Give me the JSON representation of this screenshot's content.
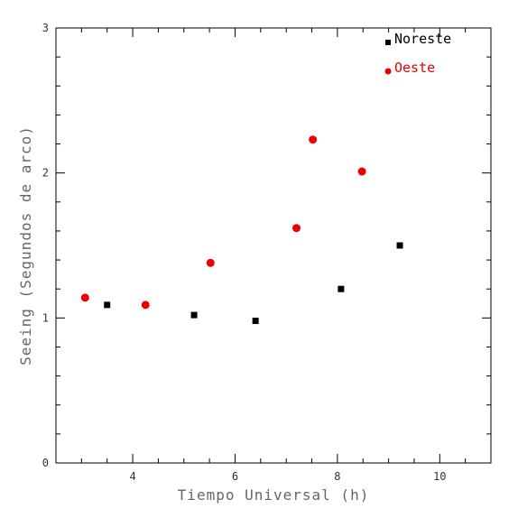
{
  "chart_data": {
    "type": "scatter",
    "title": "",
    "xlabel": "Tiempo Universal (h)",
    "ylabel": "Seeing (Segundos de arco)",
    "xlim": [
      2.5,
      11.0
    ],
    "ylim": [
      0,
      3
    ],
    "xticks_major": [
      4,
      6,
      8,
      10
    ],
    "yticks_major": [
      0,
      1,
      2,
      3
    ],
    "grid": false,
    "legend_position": "top-right",
    "series": [
      {
        "name": "Noreste",
        "marker": "square",
        "color": "#000000",
        "points": [
          {
            "x": 3.5,
            "y": 1.09
          },
          {
            "x": 5.2,
            "y": 1.02
          },
          {
            "x": 6.4,
            "y": 0.98
          },
          {
            "x": 8.07,
            "y": 1.2
          },
          {
            "x": 9.22,
            "y": 1.5
          }
        ]
      },
      {
        "name": "Oeste",
        "marker": "circle",
        "color": "#ee0000",
        "points": [
          {
            "x": 3.07,
            "y": 1.14
          },
          {
            "x": 4.25,
            "y": 1.09
          },
          {
            "x": 5.52,
            "y": 1.38
          },
          {
            "x": 7.2,
            "y": 1.62
          },
          {
            "x": 7.52,
            "y": 2.23
          },
          {
            "x": 8.48,
            "y": 2.01
          }
        ]
      }
    ]
  }
}
